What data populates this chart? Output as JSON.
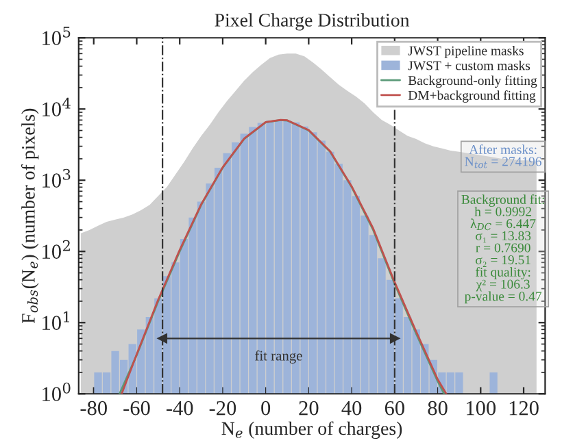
{
  "chart_data": {
    "type": "histogram",
    "title": "Pixel Charge Distribution",
    "xlabel": "N$_{e}$ (number of charges)",
    "ylabel": "F$_{obs}$(N$_{e}$) (number of pixels)",
    "bins": [
      -88,
      -84,
      -80,
      -76,
      -72,
      -68,
      -64,
      -60,
      -56,
      -52,
      -48,
      -44,
      -40,
      -36,
      -32,
      -28,
      -24,
      -20,
      -16,
      -12,
      -8,
      -4,
      0,
      4,
      8,
      12,
      16,
      20,
      24,
      28,
      32,
      36,
      40,
      44,
      48,
      52,
      56,
      60,
      64,
      68,
      72,
      76,
      80,
      84,
      88,
      92,
      96,
      100,
      104,
      108,
      112,
      116,
      120,
      124,
      128
    ],
    "series": [
      {
        "name": "JWST pipeline masks",
        "type": "area",
        "color": "#cfcfcf",
        "x": [
          -86,
          -82,
          -78,
          -74,
          -70,
          -66,
          -62,
          -58,
          -54,
          -50,
          -46,
          -42,
          -38,
          -34,
          -30,
          -26,
          -22,
          -18,
          -14,
          -10,
          -6,
          -2,
          2,
          6,
          10,
          14,
          18,
          22,
          26,
          30,
          34,
          38,
          42,
          46,
          50,
          54,
          58,
          62,
          66,
          70,
          74,
          78,
          82,
          86,
          90,
          94,
          98,
          102,
          106,
          110,
          114,
          118,
          122,
          126
        ],
        "values": [
          180,
          200,
          230,
          260,
          280,
          300,
          330,
          380,
          450,
          600,
          800,
          1200,
          1800,
          2800,
          4200,
          6000,
          9000,
          13000,
          18000,
          25000,
          33000,
          42000,
          52000,
          58000,
          60000,
          60000,
          55000,
          45000,
          36000,
          28000,
          22000,
          18000,
          15000,
          12000,
          9000,
          7000,
          6000,
          5000,
          4200,
          3800,
          3300,
          3000,
          2800,
          2600,
          2500,
          2400,
          2300,
          2200,
          2100,
          2000,
          2000,
          1900,
          1900,
          1800
        ]
      },
      {
        "name": "JWST + custom masks",
        "color": "#9db4da",
        "values": [
          null,
          null,
          2,
          2,
          4,
          3,
          5,
          8,
          12,
          22,
          45,
          70,
          150,
          300,
          500,
          900,
          1500,
          2400,
          3400,
          4500,
          5600,
          6400,
          6900,
          7000,
          6900,
          6500,
          5700,
          4700,
          3600,
          2500,
          1700,
          1000,
          600,
          320,
          170,
          80,
          40,
          22,
          12,
          8,
          5,
          3,
          2,
          2,
          2,
          null,
          null,
          null,
          2,
          null,
          null,
          null,
          null,
          null
        ]
      },
      {
        "name": "Background-only fitting",
        "type": "line",
        "color": "#5a9a78",
        "x": [
          -68,
          -60,
          -50,
          -40,
          -30,
          -20,
          -10,
          0,
          7,
          10,
          20,
          30,
          40,
          50,
          60,
          70,
          80,
          83
        ],
        "values": [
          1,
          3.5,
          20,
          100,
          450,
          1500,
          3800,
          6500,
          7000,
          6900,
          5000,
          2500,
          800,
          200,
          35,
          7,
          1.5,
          1
        ]
      },
      {
        "name": "DM+background fitting",
        "type": "line",
        "color": "#c0504d",
        "x": [
          -67,
          -60,
          -50,
          -40,
          -30,
          -20,
          -10,
          0,
          7,
          10,
          20,
          30,
          40,
          50,
          60,
          70,
          80,
          84
        ],
        "values": [
          1,
          3.6,
          21,
          105,
          460,
          1520,
          3850,
          6550,
          7050,
          6950,
          5050,
          2550,
          820,
          210,
          37,
          7.5,
          1.6,
          1
        ]
      },
      {
        "type": "line",
        "marker": "triangle",
        "color": "#333333",
        "x": [
          -48,
          60
        ],
        "values": [
          6,
          6
        ]
      }
    ],
    "xlim": [
      -87,
      130
    ],
    "xticks": [
      -80,
      -60,
      -40,
      -20,
      0,
      20,
      40,
      60,
      80,
      100,
      120
    ],
    "ylim": [
      1,
      100000
    ],
    "yticks": [
      {
        "value": 1,
        "label": "10$^{0}$"
      },
      {
        "value": 10,
        "label": "10$^{1}$"
      },
      {
        "value": 100,
        "label": "10$^{2}$"
      },
      {
        "value": 1000,
        "label": "10$^{3}$"
      },
      {
        "value": 10000,
        "label": "10$^{4}$"
      },
      {
        "value": 100000,
        "label": "10$^{5}$"
      }
    ],
    "log": "y",
    "legend": "top right",
    "grid": false,
    "ref_lines": [
      {
        "axis": "x",
        "value": -48,
        "color": "#333333",
        "line_style": "dashdot"
      },
      {
        "axis": "x",
        "value": 60,
        "color": "#333333",
        "line_style": "dashdot"
      }
    ],
    "annotations": [
      {
        "text": "fit range",
        "x": 6,
        "y": 3.3
      },
      "After masks:\nN$_{tot}$ = 274196",
      "Background fit:\nh = 0.9992\nλ$_{DC}$ = 6.447\nσ₁ = 13.83\nr = 0.7690\nσ₂ = 19.51\nfit quality:\nχ² = 106.3\np-value = 0.47"
    ]
  }
}
